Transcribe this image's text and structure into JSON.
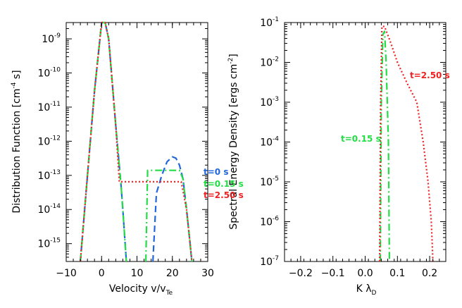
{
  "chart_data": [
    {
      "type": "line",
      "xlabel_main": "Velocity v/v",
      "xlabel_sub": "Te",
      "ylabel_main": "Distribution Function [cm",
      "ylabel_sup": "-4",
      "ylabel_tail": " s]",
      "xlim": [
        -10,
        30
      ],
      "ylim": [
        3e-16,
        3e-09
      ],
      "yscale": "log",
      "xticks": [
        -10,
        0,
        10,
        20,
        30
      ],
      "yticks": [
        {
          "value": 1e-09,
          "label": "10",
          "exp": "-9"
        },
        {
          "value": 1e-10,
          "label": "10",
          "exp": "-10"
        },
        {
          "value": 1e-11,
          "label": "10",
          "exp": "-11"
        },
        {
          "value": 1e-12,
          "label": "10",
          "exp": "-12"
        },
        {
          "value": 1e-13,
          "label": "10",
          "exp": "-13"
        },
        {
          "value": 1e-14,
          "label": "10",
          "exp": "-14"
        },
        {
          "value": 1e-15,
          "label": "10",
          "exp": "-15"
        }
      ],
      "series": [
        {
          "name": "t=0 s",
          "color": "#2266dd",
          "dash": "9,5",
          "points": [
            [
              -6,
              3e-16
            ],
            [
              -4,
              1e-13
            ],
            [
              -2,
              3e-11
            ],
            [
              0,
              3e-09
            ],
            [
              1,
              3e-09
            ],
            [
              2,
              1e-09
            ],
            [
              4,
              3e-12
            ],
            [
              5.5,
              5e-14
            ],
            [
              6,
              1e-14
            ],
            [
              7,
              3e-16
            ],
            [
              null,
              null
            ],
            [
              14.5,
              3e-16
            ],
            [
              15.5,
              3e-14
            ],
            [
              17,
              1e-13
            ],
            [
              18.5,
              2.5e-13
            ],
            [
              20,
              3.5e-13
            ],
            [
              21,
              3.2e-13
            ],
            [
              22,
              2e-13
            ],
            [
              23,
              8e-14
            ],
            [
              24,
              1e-14
            ],
            [
              25,
              1e-15
            ],
            [
              25.5,
              3e-16
            ]
          ]
        },
        {
          "name": "t=0.15 s",
          "color": "#22dd44",
          "dash": "10,4,2,4",
          "points": [
            [
              -6,
              3e-16
            ],
            [
              -4,
              1e-13
            ],
            [
              -2,
              3e-11
            ],
            [
              0,
              3e-09
            ],
            [
              1,
              3e-09
            ],
            [
              2,
              1e-09
            ],
            [
              4,
              3e-12
            ],
            [
              5.5,
              5e-14
            ],
            [
              6,
              1e-14
            ],
            [
              7,
              3e-16
            ],
            [
              null,
              null
            ],
            [
              12.5,
              3e-16
            ],
            [
              13,
              1.4e-13
            ],
            [
              22,
              1.4e-13
            ],
            [
              23,
              8e-14
            ],
            [
              24,
              1e-14
            ],
            [
              25,
              1e-15
            ],
            [
              25.5,
              3e-16
            ]
          ]
        },
        {
          "name": "t=2.50 s",
          "color": "#ee2222",
          "dash": "2,3",
          "points": [
            [
              -6,
              3e-16
            ],
            [
              -4,
              1e-13
            ],
            [
              -2,
              3e-11
            ],
            [
              0,
              3e-09
            ],
            [
              1,
              3e-09
            ],
            [
              2,
              1e-09
            ],
            [
              4,
              3e-12
            ],
            [
              5,
              6.5e-14
            ],
            [
              22.5,
              6.5e-14
            ],
            [
              24,
              1e-14
            ],
            [
              25,
              1e-15
            ],
            [
              25.5,
              3e-16
            ]
          ]
        }
      ]
    },
    {
      "type": "line",
      "xlabel_main": "K λ",
      "xlabel_sub": "D",
      "ylabel_main": "Spectral Energy Density [ergs cm",
      "ylabel_sup": "-2",
      "ylabel_tail": "]",
      "xlim": [
        -0.25,
        0.25
      ],
      "ylim": [
        1e-07,
        0.1
      ],
      "yscale": "log",
      "xticks": [
        -0.2,
        -0.1,
        0.0,
        0.1,
        0.2
      ],
      "xtick_labels": [
        "−0.2",
        "−0.1",
        "0.0",
        "0.1",
        "0.2"
      ],
      "yticks": [
        {
          "value": 0.1,
          "label": "10",
          "exp": "-1"
        },
        {
          "value": 0.01,
          "label": "10",
          "exp": "-2"
        },
        {
          "value": 0.001,
          "label": "10",
          "exp": "-3"
        },
        {
          "value": 0.0001,
          "label": "10",
          "exp": "-4"
        },
        {
          "value": 1e-05,
          "label": "10",
          "exp": "-5"
        },
        {
          "value": 1e-06,
          "label": "10",
          "exp": "-6"
        },
        {
          "value": 1e-07,
          "label": "10",
          "exp": "-7"
        }
      ],
      "series": [
        {
          "name": "t=0.15 s",
          "color": "#22dd44",
          "dash": "10,4,2,4",
          "points": [
            [
              0.047,
              1e-07
            ],
            [
              0.05,
              0.001
            ],
            [
              0.055,
              0.05
            ],
            [
              0.06,
              0.06
            ],
            [
              0.065,
              0.01
            ],
            [
              0.072,
              0.0001
            ],
            [
              0.075,
              1e-07
            ]
          ]
        },
        {
          "name": "t=2.50 s",
          "color": "#ee2222",
          "dash": "2,3",
          "points": [
            [
              0.045,
              1e-07
            ],
            [
              0.048,
              0.001
            ],
            [
              0.052,
              0.08
            ],
            [
              0.06,
              0.08
            ],
            [
              0.08,
              0.03
            ],
            [
              0.1,
              0.01
            ],
            [
              0.13,
              0.003
            ],
            [
              0.16,
              0.001
            ],
            [
              0.18,
              0.0001
            ],
            [
              0.195,
              1e-05
            ],
            [
              0.205,
              1e-06
            ],
            [
              0.21,
              1e-07
            ]
          ]
        }
      ]
    }
  ],
  "legend_left": [
    {
      "text": "t=0 s",
      "color": "#2266dd"
    },
    {
      "text": "t=0.15 s",
      "color": "#22dd44"
    },
    {
      "text": "t=2.50 s",
      "color": "#ee2222"
    }
  ],
  "labels_right": [
    {
      "text": "t=2.50 s",
      "color": "#ee2222"
    },
    {
      "text": "t=0.15 s",
      "color": "#22dd44"
    }
  ]
}
